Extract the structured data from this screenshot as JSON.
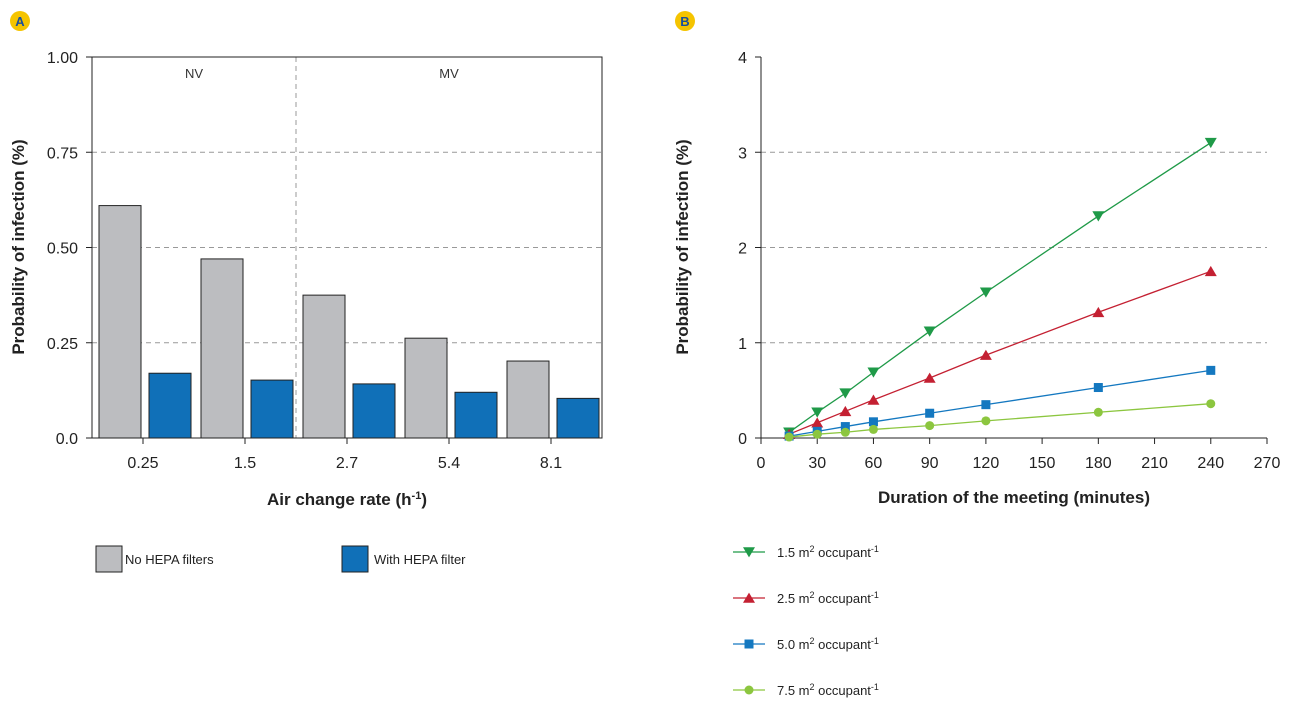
{
  "colors": {
    "no_hepa": "#bcbdc0",
    "with_hepa": "#1070b8",
    "badge_fill": "#f5c400",
    "badge_text": "#1a4f9c",
    "grid": "#999999",
    "series_15": "#1f9a48",
    "series_25": "#c42032",
    "series_50": "#1478c0",
    "series_75": "#8cc63f"
  },
  "chart_data": [
    {
      "panel": "A",
      "type": "bar",
      "title": "",
      "xlabel": "Air change rate (h",
      "xlabel_sup": "-1",
      "xlabel_end": ")",
      "ylabel": "Probability of infection (%)",
      "ylim": [
        0,
        1.0
      ],
      "yticks": [
        "0.0",
        "0.25",
        "0.50",
        "0.75",
        "1.00"
      ],
      "ytick_values": [
        0,
        0.25,
        0.5,
        0.75,
        1.0
      ],
      "categories": [
        "0.25",
        "1.5",
        "2.7",
        "5.4",
        "8.1"
      ],
      "series": [
        {
          "name": "No HEPA filters",
          "values": [
            0.61,
            0.47,
            0.375,
            0.262,
            0.202
          ]
        },
        {
          "name": "With HEPA filter",
          "values": [
            0.17,
            0.152,
            0.142,
            0.12,
            0.104
          ]
        }
      ],
      "regions": [
        {
          "label": "NV",
          "from_category": 0,
          "to_category": 1
        },
        {
          "label": "MV",
          "from_category": 2,
          "to_category": 4
        }
      ],
      "grid": "horizontal dashed",
      "legend_position": "bottom-left"
    },
    {
      "panel": "B",
      "type": "line",
      "title": "",
      "xlabel": "Duration of the meeting (minutes)",
      "ylabel": "Probability of infection (%)",
      "xlim": [
        0,
        270
      ],
      "ylim": [
        0,
        4
      ],
      "xticks": [
        "0",
        "30",
        "60",
        "90",
        "120",
        "150",
        "180",
        "210",
        "240",
        "270"
      ],
      "xtick_values": [
        0,
        30,
        60,
        90,
        120,
        150,
        180,
        210,
        240,
        270
      ],
      "yticks": [
        "0",
        "1",
        "2",
        "3",
        "4"
      ],
      "ytick_values": [
        0,
        1,
        2,
        3,
        4
      ],
      "x": [
        15,
        30,
        45,
        60,
        90,
        120,
        180,
        240
      ],
      "series": [
        {
          "name": "1.5 m",
          "name_sup": "2",
          "name_end": " occupant",
          "name_sup2": "-1",
          "marker": "triangle-down",
          "values": [
            0.06,
            0.27,
            0.47,
            0.69,
            1.12,
            1.53,
            2.33,
            3.1
          ]
        },
        {
          "name": "2.5 m",
          "name_sup": "2",
          "name_end": " occupant",
          "name_sup2": "-1",
          "marker": "triangle-up",
          "values": [
            0.04,
            0.16,
            0.28,
            0.4,
            0.63,
            0.87,
            1.32,
            1.75
          ]
        },
        {
          "name": "5.0 m",
          "name_sup": "2",
          "name_end": " occupant",
          "name_sup2": "-1",
          "marker": "square",
          "values": [
            0.02,
            0.07,
            0.12,
            0.17,
            0.26,
            0.35,
            0.53,
            0.71
          ]
        },
        {
          "name": "7.5 m",
          "name_sup": "2",
          "name_end": " occupant",
          "name_sup2": "-1",
          "marker": "circle",
          "values": [
            0.01,
            0.04,
            0.06,
            0.09,
            0.13,
            0.18,
            0.27,
            0.36
          ]
        }
      ],
      "grid": "horizontal dashed",
      "legend_position": "bottom-left"
    }
  ]
}
